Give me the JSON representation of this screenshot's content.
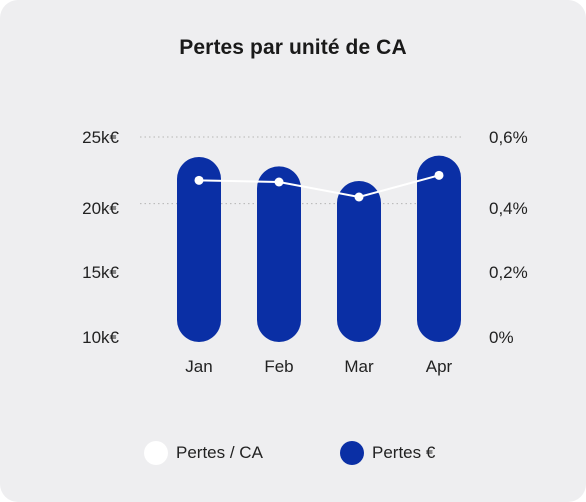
{
  "title": "Pertes par unité de CA",
  "colors": {
    "bar": "#0a2fa5",
    "line": "#ffffff",
    "grid": "#b5b5b5",
    "card": "#eeeef0"
  },
  "chart_data": {
    "type": "bar",
    "title": "Pertes par unité de CA",
    "categories": [
      "Jan",
      "Feb",
      "Mar",
      "Apr"
    ],
    "series": [
      {
        "name": "Pertes €",
        "type": "bar",
        "axis": "left",
        "values": [
          23500,
          22800,
          21700,
          23600
        ]
      },
      {
        "name": "Pertes / CA",
        "type": "line",
        "axis": "right",
        "values": [
          0.47,
          0.465,
          0.42,
          0.485
        ]
      }
    ],
    "y_left": {
      "ticks": [
        "10k€",
        "15k€",
        "20k€",
        "25k€"
      ],
      "range": [
        10000,
        25000
      ]
    },
    "y_right": {
      "ticks": [
        "0%",
        "0,2%",
        "0,4%",
        "0,6%"
      ],
      "range": [
        0,
        0.6
      ]
    },
    "grid": {
      "dotted_lines_at_left": [
        25000,
        20000
      ]
    },
    "legend": {
      "placement": "bottom",
      "items": [
        {
          "label": "Pertes / CA",
          "color": "#ffffff"
        },
        {
          "label": "Pertes €",
          "color": "#0a2fa5"
        }
      ]
    }
  }
}
